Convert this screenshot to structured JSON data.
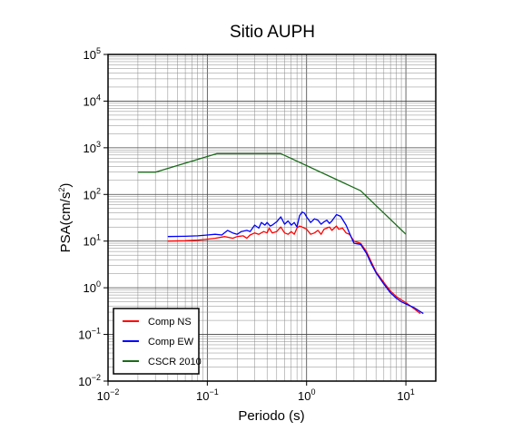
{
  "chart_data": {
    "type": "line",
    "title": "Sitio AUPH",
    "xlabel": "Periodo (s)",
    "ylabel_parts": [
      "PSA(cm/s",
      "2",
      ")"
    ],
    "x_scale": "log",
    "y_scale": "log",
    "xlim": [
      0.01,
      20
    ],
    "ylim": [
      0.01,
      100000
    ],
    "grid": true,
    "legend_position": "bottom-left",
    "x_ticks": [
      {
        "value": 0.01,
        "base": "10",
        "exp": "−2"
      },
      {
        "value": 0.1,
        "base": "10",
        "exp": "−1"
      },
      {
        "value": 1,
        "base": "10",
        "exp": "0"
      },
      {
        "value": 10,
        "base": "10",
        "exp": "1"
      }
    ],
    "y_ticks": [
      {
        "value": 0.01,
        "base": "10",
        "exp": "−2"
      },
      {
        "value": 0.1,
        "base": "10",
        "exp": "−1"
      },
      {
        "value": 1,
        "base": "10",
        "exp": "0"
      },
      {
        "value": 10,
        "base": "10",
        "exp": "1"
      },
      {
        "value": 100,
        "base": "10",
        "exp": "2"
      },
      {
        "value": 1000,
        "base": "10",
        "exp": "3"
      },
      {
        "value": 10000,
        "base": "10",
        "exp": "4"
      },
      {
        "value": 100000,
        "base": "10",
        "exp": "5"
      }
    ],
    "series": [
      {
        "name": "Comp NS",
        "color": "#ff0000",
        "points": [
          [
            0.04,
            10
          ],
          [
            0.06,
            10.2
          ],
          [
            0.08,
            10.5
          ],
          [
            0.1,
            11
          ],
          [
            0.12,
            11.5
          ],
          [
            0.15,
            12.5
          ],
          [
            0.18,
            11.5
          ],
          [
            0.2,
            12.5
          ],
          [
            0.23,
            13
          ],
          [
            0.25,
            11.5
          ],
          [
            0.27,
            13.5
          ],
          [
            0.3,
            15
          ],
          [
            0.33,
            14
          ],
          [
            0.37,
            16
          ],
          [
            0.4,
            15
          ],
          [
            0.42,
            19
          ],
          [
            0.45,
            15
          ],
          [
            0.5,
            16
          ],
          [
            0.55,
            20
          ],
          [
            0.6,
            15
          ],
          [
            0.65,
            14
          ],
          [
            0.7,
            16
          ],
          [
            0.75,
            14
          ],
          [
            0.8,
            19
          ],
          [
            0.85,
            21
          ],
          [
            0.9,
            20
          ],
          [
            1.0,
            18
          ],
          [
            1.1,
            14
          ],
          [
            1.2,
            15
          ],
          [
            1.3,
            17
          ],
          [
            1.4,
            14
          ],
          [
            1.5,
            18
          ],
          [
            1.6,
            19
          ],
          [
            1.7,
            20
          ],
          [
            1.8,
            17
          ],
          [
            1.9,
            19
          ],
          [
            2.0,
            21
          ],
          [
            2.1,
            18
          ],
          [
            2.3,
            19
          ],
          [
            2.5,
            15
          ],
          [
            2.7,
            14
          ],
          [
            3.0,
            10
          ],
          [
            3.5,
            9
          ],
          [
            4.0,
            6
          ],
          [
            4.5,
            3.5
          ],
          [
            5,
            2.2
          ],
          [
            6,
            1.3
          ],
          [
            7,
            0.85
          ],
          [
            8,
            0.65
          ],
          [
            9,
            0.55
          ],
          [
            10,
            0.48
          ],
          [
            12,
            0.36
          ],
          [
            14,
            0.28
          ]
        ]
      },
      {
        "name": "Comp EW",
        "color": "#0000ff",
        "points": [
          [
            0.04,
            12.5
          ],
          [
            0.06,
            12.7
          ],
          [
            0.08,
            13
          ],
          [
            0.1,
            13.5
          ],
          [
            0.12,
            14
          ],
          [
            0.14,
            13.5
          ],
          [
            0.16,
            17
          ],
          [
            0.18,
            15
          ],
          [
            0.2,
            14
          ],
          [
            0.22,
            16
          ],
          [
            0.25,
            17
          ],
          [
            0.27,
            16
          ],
          [
            0.3,
            22
          ],
          [
            0.33,
            19
          ],
          [
            0.35,
            25
          ],
          [
            0.38,
            22
          ],
          [
            0.4,
            25
          ],
          [
            0.43,
            21
          ],
          [
            0.45,
            22
          ],
          [
            0.5,
            26
          ],
          [
            0.55,
            33
          ],
          [
            0.6,
            23
          ],
          [
            0.65,
            27
          ],
          [
            0.7,
            22
          ],
          [
            0.75,
            25
          ],
          [
            0.8,
            20
          ],
          [
            0.85,
            35
          ],
          [
            0.9,
            42
          ],
          [
            0.95,
            40
          ],
          [
            1.0,
            33
          ],
          [
            1.1,
            25
          ],
          [
            1.2,
            30
          ],
          [
            1.3,
            28
          ],
          [
            1.4,
            23
          ],
          [
            1.5,
            26
          ],
          [
            1.6,
            28
          ],
          [
            1.7,
            24
          ],
          [
            1.8,
            27
          ],
          [
            2.0,
            37
          ],
          [
            2.2,
            34
          ],
          [
            2.5,
            22
          ],
          [
            2.7,
            15
          ],
          [
            3.0,
            9
          ],
          [
            3.5,
            8.5
          ],
          [
            4.0,
            5.5
          ],
          [
            4.5,
            3.2
          ],
          [
            5,
            2.1
          ],
          [
            6,
            1.2
          ],
          [
            7,
            0.78
          ],
          [
            8,
            0.6
          ],
          [
            9,
            0.5
          ],
          [
            10,
            0.45
          ],
          [
            12,
            0.38
          ],
          [
            15,
            0.28
          ]
        ]
      },
      {
        "name": "CSCR 2010",
        "color": "#1a6b1a",
        "points": [
          [
            0.02,
            300
          ],
          [
            0.03,
            300
          ],
          [
            0.125,
            750
          ],
          [
            0.55,
            750
          ],
          [
            3.5,
            120
          ],
          [
            10,
            14
          ]
        ]
      }
    ]
  }
}
